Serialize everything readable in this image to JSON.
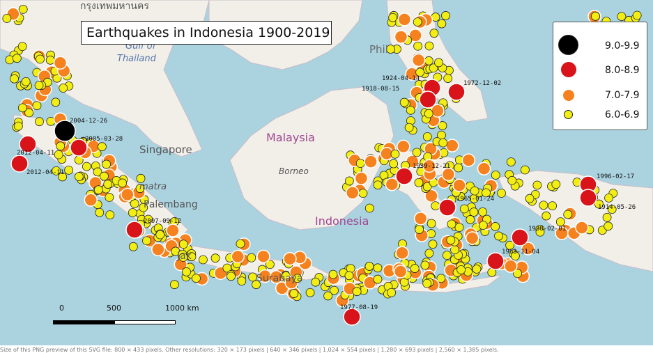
{
  "title": "Earthquakes in Indonesia 1900-2019",
  "legend": [
    {
      "label": "9.0-9.9",
      "color": "#000000"
    },
    {
      "label": "8.0-8.9",
      "color": "#d8141a"
    },
    {
      "label": "7.0-7.9",
      "color": "#f5821f"
    },
    {
      "label": "6.0-6.9",
      "color": "#f2ee14"
    }
  ],
  "place_labels": {
    "thailand_top": "กรุงเทพมหานคร",
    "gulf": "Gulf of",
    "thailand": "Thailand",
    "philippines": "Phil",
    "singapore": "Singapore",
    "malaysia": "Malaysia",
    "borneo": "Borneo",
    "indonesia": "Indonesia",
    "sumatra": "matra",
    "palembang": "Palembang",
    "java": "Jak",
    "surabaya": "Surabaya"
  },
  "scale": {
    "ticks": [
      "0",
      "500",
      "1000 km"
    ]
  },
  "footer": "Size of this PNG preview of this SVG file: 800 × 433 pixels. Other resolutions: 320 × 173 pixels | 640 × 346 pixels | 1,024 × 554 pixels | 1,280 × 693 pixels | 2,560 × 1,385 pixels.",
  "quake_labels": [
    "2004-12-26",
    "2005-03-28",
    "2012-04-11",
    "2012-04-11",
    "2007-09-12",
    "1924-04-14",
    "1918-08-15",
    "1972-12-02",
    "1939-12-21",
    "1965-01-24",
    "1996-02-17",
    "1914-05-26",
    "1938-02-01",
    "1963-11-04",
    "1977-08-19"
  ],
  "colors": {
    "water": "#aad3df",
    "land": "#f2efe9",
    "land_border": "#b9a8b9"
  }
}
